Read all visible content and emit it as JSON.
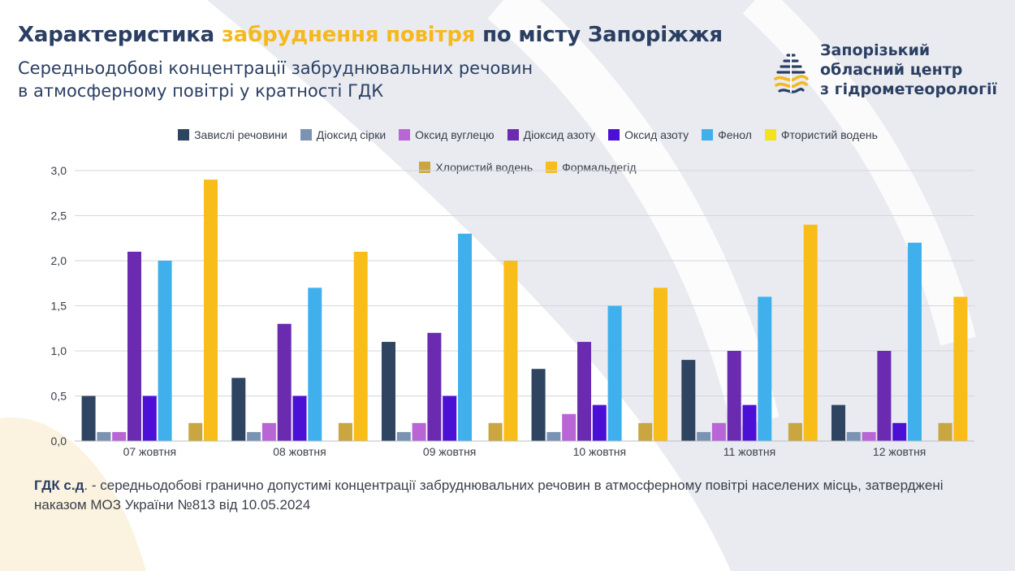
{
  "header": {
    "title_part1": "Характеристика ",
    "title_accent": "забруднення повітря",
    "title_part2": " по місту Запоріжжя",
    "subtitle_line1": "Середньодобові концентрації забруднювальних речовин",
    "subtitle_line2": "в атмосферному повітрі у кратності ГДК"
  },
  "logo": {
    "icon": "water-drop-wave-icon",
    "line1": "Запорізький",
    "line2": "обласний центр",
    "line3": "з гідрометеорології"
  },
  "colors": {
    "title": "#2b3f63",
    "accent": "#f5b81e",
    "background_shape": "#e9ebf0"
  },
  "chart_data": {
    "type": "bar",
    "title": "",
    "xlabel": "",
    "ylabel": "",
    "categories": [
      "07 жовтня",
      "08 жовтня",
      "09 жовтня",
      "10 жовтня",
      "11 жовтня",
      "12 жовтня"
    ],
    "ylim": [
      0,
      3.0
    ],
    "yticks": [
      "0,0",
      "0,5",
      "1,0",
      "1,5",
      "2,0",
      "2,5",
      "3,0"
    ],
    "grid": true,
    "legend_position": "top-center",
    "series": [
      {
        "name": "Завислі речовини",
        "color": "#2e4460",
        "values": [
          0.5,
          0.7,
          1.1,
          0.8,
          0.9,
          0.4
        ]
      },
      {
        "name": "Діоксид сірки",
        "color": "#7b93b3",
        "values": [
          0.1,
          0.1,
          0.1,
          0.1,
          0.1,
          0.1
        ]
      },
      {
        "name": "Оксид вуглецю",
        "color": "#b865d6",
        "values": [
          0.1,
          0.2,
          0.2,
          0.3,
          0.2,
          0.1
        ]
      },
      {
        "name": "Діоксид азоту",
        "color": "#6a2bb0",
        "values": [
          2.1,
          1.3,
          1.2,
          1.1,
          1.0,
          1.0
        ]
      },
      {
        "name": "Оксид азоту",
        "color": "#4b0fd6",
        "values": [
          0.5,
          0.5,
          0.5,
          0.4,
          0.4,
          0.2
        ]
      },
      {
        "name": "Фенол",
        "color": "#3fb0ec",
        "values": [
          2.0,
          1.7,
          2.3,
          1.5,
          1.6,
          2.2
        ]
      },
      {
        "name": "Фтористий водень",
        "color": "#f3e21c",
        "values": [
          0,
          0,
          0,
          0,
          0,
          0
        ]
      },
      {
        "name": "Хлористий водень",
        "color": "#c9a640",
        "values": [
          0.2,
          0.2,
          0.2,
          0.2,
          0.2,
          0.2
        ]
      },
      {
        "name": "Формальдегід",
        "color": "#f8bd18",
        "values": [
          2.9,
          2.1,
          2.0,
          1.7,
          2.4,
          1.6
        ]
      }
    ]
  },
  "footnote": {
    "term": "ГДК с.д",
    "text": ". - середньодобові гранично допустимі концентрації забруднювальних речовин в атмосферному повітрі населених місць, затверджені наказом МОЗ України №813 від 10.05.2024"
  }
}
